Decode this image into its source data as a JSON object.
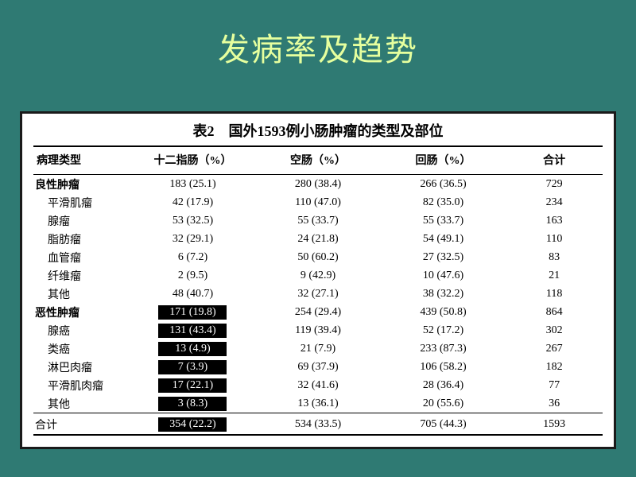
{
  "title": "发病率及趋势",
  "caption": "表2　国外1593例小肠肿瘤的类型及部位",
  "columns": [
    "病理类型",
    "十二指肠（%）",
    "空肠（%）",
    "回肠（%）",
    "合计"
  ],
  "rows": [
    {
      "label": "良性肿瘤",
      "bold": true,
      "indent": false,
      "c1": "183 (25.1)",
      "c2": "280 (38.4)",
      "c3": "266 (36.5)",
      "c4": "729",
      "hl": false
    },
    {
      "label": "平滑肌瘤",
      "bold": false,
      "indent": true,
      "c1": "42 (17.9)",
      "c2": "110 (47.0)",
      "c3": "82 (35.0)",
      "c4": "234",
      "hl": false
    },
    {
      "label": "腺瘤",
      "bold": false,
      "indent": true,
      "c1": "53 (32.5)",
      "c2": "55 (33.7)",
      "c3": "55 (33.7)",
      "c4": "163",
      "hl": false
    },
    {
      "label": "脂肪瘤",
      "bold": false,
      "indent": true,
      "c1": "32 (29.1)",
      "c2": "24 (21.8)",
      "c3": "54 (49.1)",
      "c4": "110",
      "hl": false
    },
    {
      "label": "血管瘤",
      "bold": false,
      "indent": true,
      "c1": "6 (7.2)",
      "c2": "50 (60.2)",
      "c3": "27 (32.5)",
      "c4": "83",
      "hl": false
    },
    {
      "label": "纤维瘤",
      "bold": false,
      "indent": true,
      "c1": "2 (9.5)",
      "c2": "9 (42.9)",
      "c3": "10 (47.6)",
      "c4": "21",
      "hl": false
    },
    {
      "label": "其他",
      "bold": false,
      "indent": true,
      "c1": "48 (40.7)",
      "c2": "32 (27.1)",
      "c3": "38 (32.2)",
      "c4": "118",
      "hl": false
    },
    {
      "label": "恶性肿瘤",
      "bold": true,
      "indent": false,
      "c1": "171 (19.8)",
      "c2": "254 (29.4)",
      "c3": "439 (50.8)",
      "c4": "864",
      "hl": true
    },
    {
      "label": "腺癌",
      "bold": false,
      "indent": true,
      "c1": "131 (43.4)",
      "c2": "119 (39.4)",
      "c3": "52 (17.2)",
      "c4": "302",
      "hl": true
    },
    {
      "label": "类癌",
      "bold": false,
      "indent": true,
      "c1": "13 (4.9)",
      "c2": "21 (7.9)",
      "c3": "233 (87.3)",
      "c4": "267",
      "hl": true
    },
    {
      "label": "淋巴肉瘤",
      "bold": false,
      "indent": true,
      "c1": "7 (3.9)",
      "c2": "69 (37.9)",
      "c3": "106 (58.2)",
      "c4": "182",
      "hl": true
    },
    {
      "label": "平滑肌肉瘤",
      "bold": false,
      "indent": true,
      "c1": "17 (22.1)",
      "c2": "32 (41.6)",
      "c3": "28 (36.4)",
      "c4": "77",
      "hl": true
    },
    {
      "label": "其他",
      "bold": false,
      "indent": true,
      "c1": "3 (8.3)",
      "c2": "13 (36.1)",
      "c3": "20 (55.6)",
      "c4": "36",
      "hl": true
    }
  ],
  "total": {
    "label": "合计",
    "c1": "354 (22.2)",
    "c2": "534 (33.5)",
    "c3": "705 (44.3)",
    "c4": "1593",
    "hl": true
  }
}
